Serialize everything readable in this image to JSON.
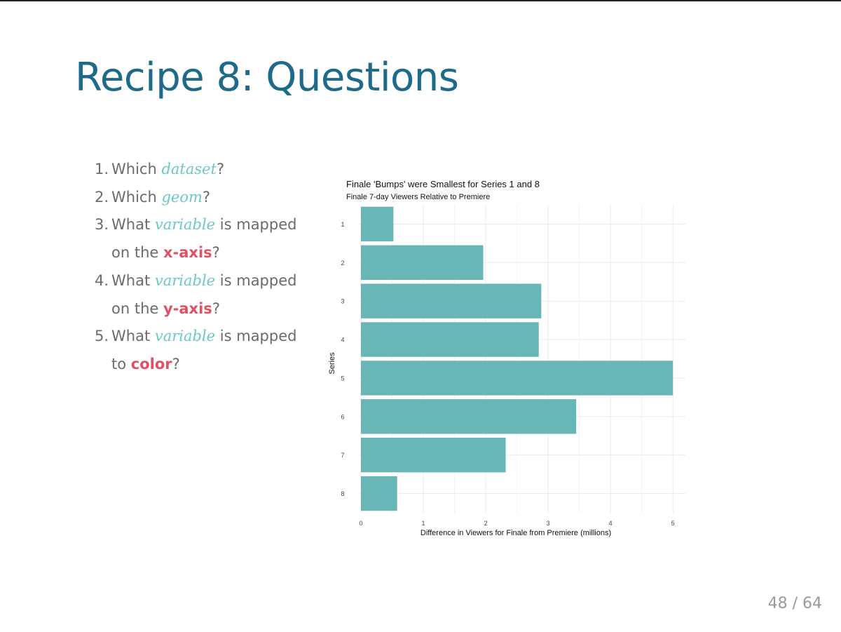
{
  "slide": {
    "title": "Recipe 8: Questions",
    "page_current": "48",
    "page_sep": "/",
    "page_total": "64",
    "questions": [
      {
        "num": "1.",
        "pre": "Which ",
        "kw": "dataset",
        "post": "?"
      },
      {
        "num": "2.",
        "pre": "Which ",
        "kw": "geom",
        "post": "?"
      },
      {
        "num": "3.",
        "pre": "What ",
        "kw": "variable",
        "mid": " is mapped on the ",
        "hl": "x-axis",
        "post": "?"
      },
      {
        "num": "4.",
        "pre": "What ",
        "kw": "variable",
        "mid": " is mapped on the ",
        "hl": "y-axis",
        "post": "?"
      },
      {
        "num": "5.",
        "pre": "What ",
        "kw": "variable",
        "mid": " is mapped to ",
        "hl": "color",
        "post": "?"
      }
    ]
  },
  "colors": {
    "title": "#1d6a8a",
    "keyword": "#6cc7c8",
    "highlight": "#e05263",
    "bar": "#69b6b7",
    "grid": "#ebebeb"
  },
  "chart_data": {
    "type": "bar",
    "orientation": "horizontal",
    "title": "Finale 'Bumps' were Smallest for Series 1 and 8",
    "subtitle": "Finale 7-day Viewers Relative to Premiere",
    "xlabel": "Difference in Viewers for Finale from Premiere (millions)",
    "ylabel": "Series",
    "categories": [
      "1",
      "2",
      "3",
      "4",
      "5",
      "6",
      "7",
      "8"
    ],
    "values": [
      0.52,
      1.96,
      2.89,
      2.85,
      5.0,
      3.45,
      2.32,
      0.58
    ],
    "xlim": [
      0,
      5.2
    ],
    "xticks": [
      0,
      1,
      2,
      3,
      4,
      5
    ],
    "grid": true,
    "legend": "none"
  }
}
